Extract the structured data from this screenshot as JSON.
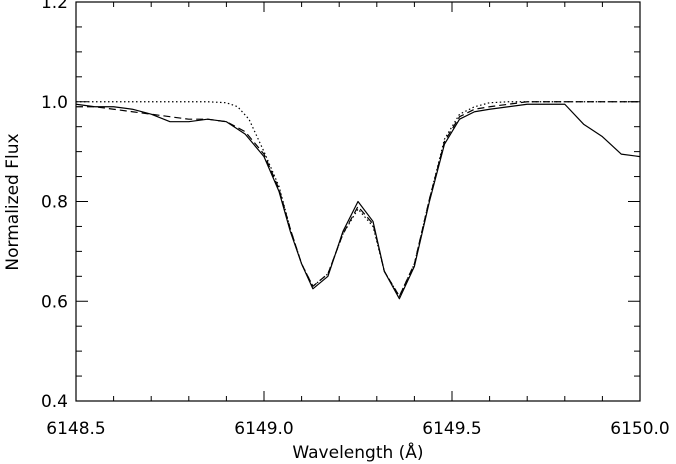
{
  "chart_data": {
    "type": "line",
    "title": "",
    "xlabel": "Wavelength (Å)",
    "ylabel": "Normalized Flux",
    "xlim": [
      6148.5,
      6150.0
    ],
    "ylim": [
      0.4,
      1.2
    ],
    "x_ticks": [
      6148.5,
      6149.0,
      6149.5,
      6150.0
    ],
    "x_tick_labels": [
      "6148.5",
      "6149.0",
      "6149.5",
      "6150.0"
    ],
    "y_ticks": [
      0.4,
      0.6,
      0.8,
      1.0,
      1.2
    ],
    "y_tick_labels": [
      "0.4",
      "0.6",
      "0.8",
      "1.0",
      "1.2"
    ],
    "grid": false,
    "legend": "none",
    "series": [
      {
        "style": "solid",
        "x": [
          6148.5,
          6148.55,
          6148.6,
          6148.65,
          6148.7,
          6148.75,
          6148.8,
          6148.85,
          6148.9,
          6148.95,
          6149.0,
          6149.04,
          6149.07,
          6149.1,
          6149.13,
          6149.17,
          6149.21,
          6149.25,
          6149.29,
          6149.32,
          6149.36,
          6149.4,
          6149.44,
          6149.48,
          6149.52,
          6149.56,
          6149.6,
          6149.65,
          6149.7,
          6149.75,
          6149.8,
          6149.85,
          6149.9,
          6149.95,
          6150.0
        ],
        "y": [
          0.995,
          0.99,
          0.99,
          0.985,
          0.975,
          0.96,
          0.96,
          0.965,
          0.96,
          0.935,
          0.89,
          0.82,
          0.74,
          0.675,
          0.625,
          0.65,
          0.74,
          0.8,
          0.76,
          0.66,
          0.605,
          0.67,
          0.8,
          0.915,
          0.965,
          0.98,
          0.985,
          0.99,
          0.995,
          0.995,
          0.995,
          0.955,
          0.93,
          0.895,
          0.89
        ]
      },
      {
        "style": "dashed",
        "x": [
          6148.5,
          6148.55,
          6148.6,
          6148.65,
          6148.7,
          6148.75,
          6148.8,
          6148.85,
          6148.9,
          6148.95,
          6149.0,
          6149.04,
          6149.07,
          6149.1,
          6149.13,
          6149.17,
          6149.21,
          6149.25,
          6149.29,
          6149.32,
          6149.36,
          6149.4,
          6149.44,
          6149.48,
          6149.52,
          6149.56,
          6149.6,
          6149.65,
          6149.7,
          6149.75,
          6149.8,
          6149.85,
          6149.9,
          6149.95,
          6150.0
        ],
        "y": [
          0.99,
          0.99,
          0.985,
          0.98,
          0.975,
          0.97,
          0.965,
          0.965,
          0.96,
          0.94,
          0.895,
          0.825,
          0.745,
          0.675,
          0.63,
          0.655,
          0.735,
          0.79,
          0.755,
          0.66,
          0.61,
          0.675,
          0.805,
          0.92,
          0.97,
          0.985,
          0.99,
          0.995,
          1.0,
          1.0,
          1.0,
          1.0,
          1.0,
          1.0,
          1.0
        ]
      },
      {
        "style": "dotted",
        "x": [
          6148.5,
          6148.55,
          6148.6,
          6148.65,
          6148.7,
          6148.75,
          6148.8,
          6148.85,
          6148.9,
          6148.93,
          6148.96,
          6149.0,
          6149.04,
          6149.07,
          6149.1,
          6149.13,
          6149.17,
          6149.21,
          6149.25,
          6149.29,
          6149.32,
          6149.36,
          6149.4,
          6149.44,
          6149.48,
          6149.52,
          6149.56,
          6149.6,
          6149.65,
          6149.7,
          6149.75,
          6149.8,
          6149.85,
          6149.9,
          6149.95,
          6150.0
        ],
        "y": [
          1.0,
          1.0,
          1.0,
          1.0,
          1.0,
          1.0,
          1.0,
          1.0,
          0.998,
          0.99,
          0.965,
          0.9,
          0.83,
          0.745,
          0.675,
          0.63,
          0.655,
          0.735,
          0.785,
          0.75,
          0.66,
          0.61,
          0.675,
          0.805,
          0.925,
          0.975,
          0.99,
          0.998,
          1.0,
          1.0,
          1.0,
          1.0,
          1.0,
          1.0,
          1.0,
          1.0
        ]
      }
    ]
  }
}
